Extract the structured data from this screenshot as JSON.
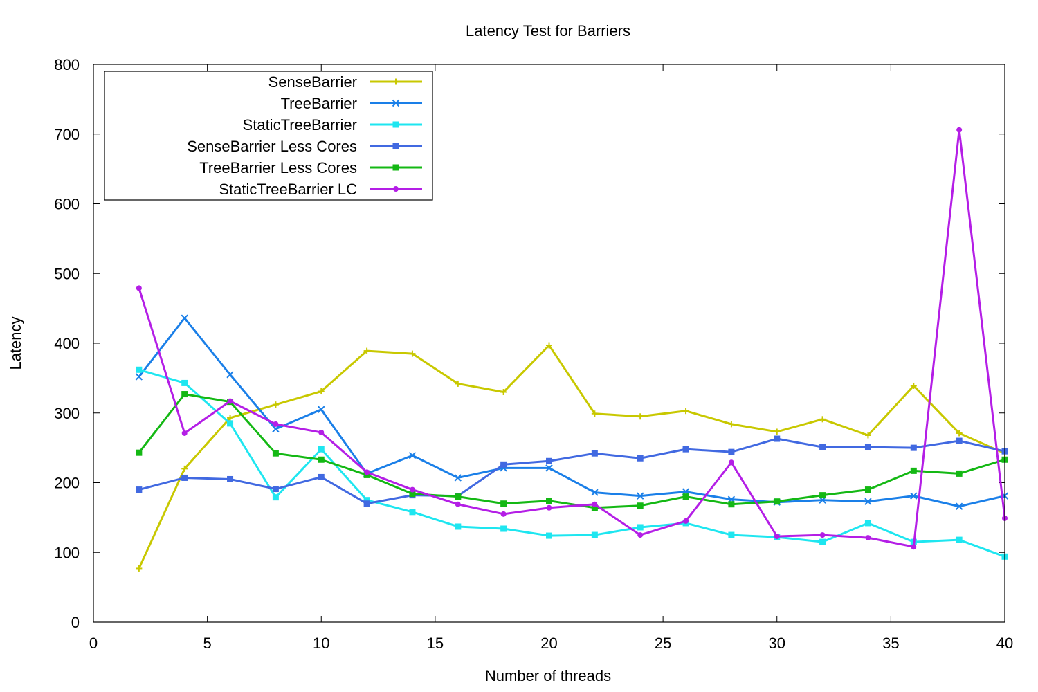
{
  "chart_data": {
    "type": "line",
    "title": "Latency Test for Barriers",
    "xlabel": "Number of threads",
    "ylabel": "Latency",
    "xlim": [
      0,
      40
    ],
    "ylim": [
      0,
      800
    ],
    "xticks": [
      0,
      5,
      10,
      15,
      20,
      25,
      30,
      35,
      40
    ],
    "yticks": [
      0,
      100,
      200,
      300,
      400,
      500,
      600,
      700,
      800
    ],
    "grid": false,
    "legend_position": "top-left",
    "x": [
      2,
      4,
      6,
      8,
      10,
      12,
      14,
      16,
      18,
      20,
      22,
      24,
      26,
      28,
      30,
      32,
      34,
      36,
      38,
      40
    ],
    "series": [
      {
        "name": "SenseBarrier",
        "color": "#c8c800",
        "marker": "plus",
        "values": [
          77,
          220,
          293,
          312,
          331,
          389,
          385,
          342,
          330,
          397,
          299,
          295,
          303,
          284,
          273,
          291,
          268,
          339,
          271,
          242
        ]
      },
      {
        "name": "TreeBarrier",
        "color": "#1a7fe8",
        "marker": "cross",
        "values": [
          352,
          436,
          355,
          277,
          305,
          213,
          239,
          207,
          221,
          221,
          186,
          181,
          187,
          176,
          172,
          175,
          173,
          181,
          166,
          181
        ]
      },
      {
        "name": "StaticTreeBarrier",
        "color": "#1ee6f0",
        "marker": "square",
        "values": [
          362,
          343,
          285,
          179,
          248,
          175,
          158,
          137,
          134,
          124,
          125,
          136,
          142,
          125,
          122,
          115,
          142,
          115,
          118,
          94
        ]
      },
      {
        "name": "SenseBarrier Less Cores",
        "color": "#4169e1",
        "marker": "square",
        "values": [
          190,
          207,
          205,
          191,
          208,
          170,
          182,
          181,
          226,
          231,
          242,
          235,
          248,
          244,
          263,
          251,
          251,
          250,
          260,
          245
        ]
      },
      {
        "name": "TreeBarrier Less Cores",
        "color": "#14b814",
        "marker": "square",
        "values": [
          243,
          327,
          316,
          242,
          233,
          211,
          184,
          180,
          170,
          174,
          164,
          167,
          180,
          169,
          173,
          182,
          190,
          217,
          213,
          233
        ]
      },
      {
        "name": "StaticTreeBarrier LC",
        "color": "#b41ee6",
        "marker": "circle",
        "values": [
          479,
          271,
          317,
          284,
          272,
          215,
          190,
          169,
          155,
          164,
          169,
          125,
          145,
          229,
          123,
          125,
          121,
          108,
          706,
          149
        ]
      }
    ]
  }
}
